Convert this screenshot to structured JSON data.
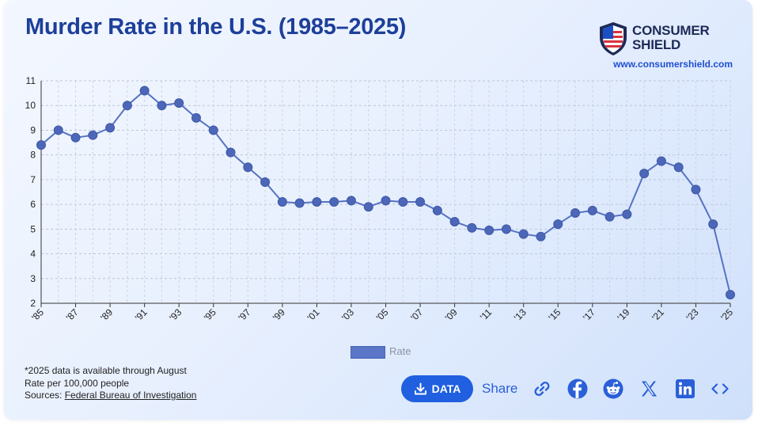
{
  "title": "Murder Rate in the U.S. (1985–2025)",
  "brand": {
    "name_line1": "CONSUMER",
    "name_line2": "SHIELD",
    "url": "www.consumershield.com"
  },
  "legend": {
    "label": "Rate"
  },
  "notes": {
    "line1": "*2025 data is available through August",
    "line2": "Rate per 100,000 people",
    "sources_prefix": "Sources: ",
    "sources_link": "Federal Bureau of Investigation"
  },
  "actions": {
    "data_label": "DATA",
    "share_label": "Share",
    "icons": [
      "link-icon",
      "facebook-icon",
      "reddit-icon",
      "x-icon",
      "linkedin-icon",
      "embed-icon"
    ]
  },
  "colors": {
    "title": "#1d3f9a",
    "line": "#5572c4",
    "marker": "#4c66b8",
    "accent": "#1f5fe0"
  },
  "chart_data": {
    "type": "line",
    "title": "Murder Rate in the U.S. (1985–2025)",
    "xlabel": "",
    "ylabel": "Rate per 100,000 people",
    "ylim": [
      2,
      11
    ],
    "yticks": [
      2,
      3,
      4,
      5,
      6,
      7,
      8,
      9,
      10,
      11
    ],
    "grid": true,
    "legend_position": "bottom-center",
    "x": [
      1985,
      1986,
      1987,
      1988,
      1989,
      1990,
      1991,
      1992,
      1993,
      1994,
      1995,
      1996,
      1997,
      1998,
      1999,
      2000,
      2001,
      2002,
      2003,
      2004,
      2005,
      2006,
      2007,
      2008,
      2009,
      2010,
      2011,
      2012,
      2013,
      2014,
      2015,
      2016,
      2017,
      2018,
      2019,
      2020,
      2021,
      2022,
      2023,
      2024,
      2025
    ],
    "xtick_labels": [
      "'85",
      "'87",
      "'89",
      "'91",
      "'93",
      "'95",
      "'97",
      "'99",
      "'01",
      "'03",
      "'05",
      "'07",
      "'09",
      "'11",
      "'13",
      "'15",
      "'17",
      "'19",
      "'21",
      "'23",
      "'25"
    ],
    "series": [
      {
        "name": "Rate",
        "values": [
          8.4,
          9.0,
          8.7,
          8.8,
          9.1,
          10.0,
          10.6,
          10.0,
          10.1,
          9.5,
          9.0,
          8.1,
          7.5,
          6.9,
          6.1,
          6.05,
          6.1,
          6.1,
          6.15,
          5.9,
          6.15,
          6.1,
          6.1,
          5.75,
          5.3,
          5.05,
          4.95,
          5.0,
          4.8,
          4.7,
          5.2,
          5.65,
          5.75,
          5.5,
          5.6,
          7.25,
          7.75,
          7.5,
          6.6,
          5.2,
          2.35
        ]
      }
    ]
  }
}
